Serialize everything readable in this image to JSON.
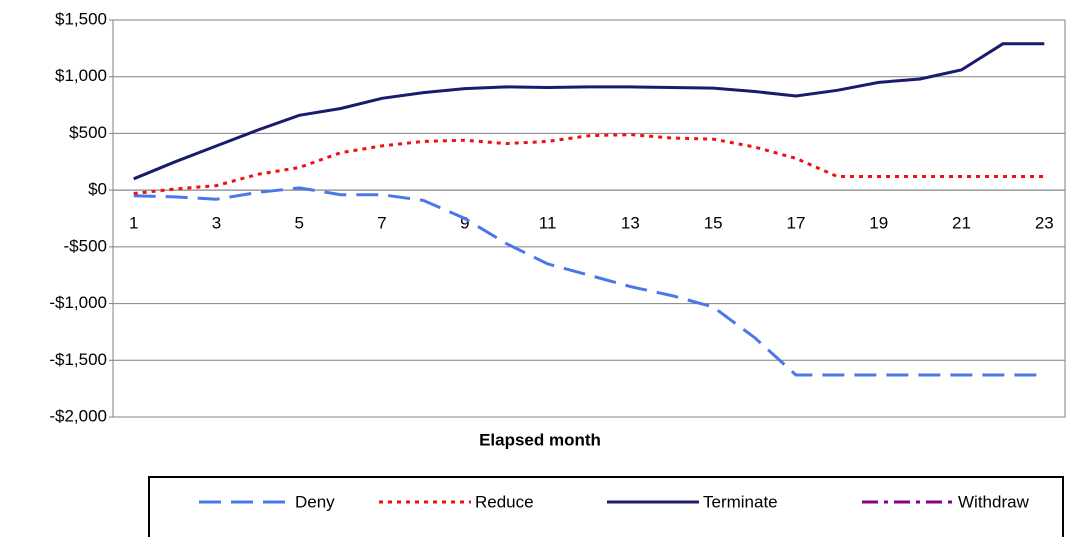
{
  "chart_data": {
    "type": "line",
    "x_label": "Elapsed month",
    "categories": [
      "1",
      null,
      "3",
      null,
      "5",
      null,
      "7",
      null,
      "9",
      null,
      "11",
      null,
      "13",
      null,
      "15",
      null,
      "17",
      null,
      "19",
      null,
      "21",
      null,
      "23"
    ],
    "ylim": [
      -2000,
      1500
    ],
    "yticks": [
      {
        "value": -2000,
        "label": "-$2,000"
      },
      {
        "value": -1500,
        "label": "-$1,500"
      },
      {
        "value": -1000,
        "label": "-$1,000"
      },
      {
        "value": -500,
        "label": "-$500"
      },
      {
        "value": 0,
        "label": "$0"
      },
      {
        "value": 500,
        "label": "$500"
      },
      {
        "value": 1000,
        "label": "$1,000"
      },
      {
        "value": 1500,
        "label": "$1,500"
      }
    ],
    "grid": true,
    "legend": "bottom",
    "series": [
      {
        "name": "Deny",
        "color": "#4a78e8",
        "style": "dashed",
        "values": [
          -50,
          -60,
          -80,
          -20,
          20,
          -40,
          -40,
          -90,
          -250,
          -470,
          -650,
          -750,
          -850,
          -930,
          -1030,
          -1300,
          -1630,
          -1630,
          -1630,
          -1630,
          -1630,
          -1630,
          -1630
        ]
      },
      {
        "name": "Reduce",
        "color": "#ee1111",
        "style": "dotted",
        "values": [
          -30,
          10,
          40,
          140,
          200,
          330,
          390,
          430,
          440,
          410,
          430,
          480,
          490,
          460,
          450,
          380,
          280,
          120,
          120,
          120,
          120,
          120,
          120
        ]
      },
      {
        "name": "Terminate",
        "color": "#1b1b6e",
        "style": "solid",
        "values": [
          100,
          250,
          390,
          530,
          660,
          720,
          810,
          860,
          895,
          910,
          905,
          910,
          910,
          905,
          900,
          870,
          830,
          880,
          950,
          980,
          1060,
          1290,
          1290
        ]
      },
      {
        "name": "Withdraw",
        "color": "#880088",
        "style": "dashdot",
        "values": [
          null,
          null,
          null,
          null,
          null,
          null,
          null,
          null,
          null,
          null,
          null,
          null,
          null,
          null,
          null,
          null,
          null,
          null,
          null,
          null,
          null,
          null,
          null
        ]
      }
    ]
  }
}
